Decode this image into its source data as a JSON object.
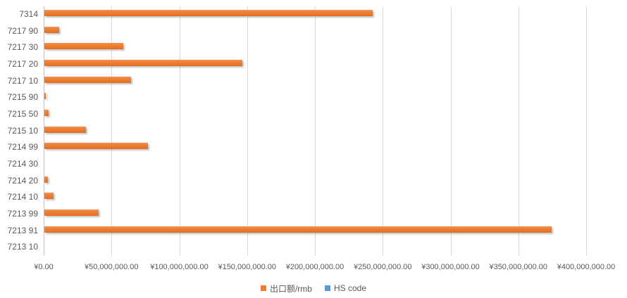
{
  "chart_data": {
    "type": "bar",
    "orientation": "horizontal",
    "title": "",
    "xlabel": "",
    "ylabel": "",
    "categories": [
      "7314",
      "7217 90",
      "7217 30",
      "7217 20",
      "7217 10",
      "7215 90",
      "7215 50",
      "7215 10",
      "7214 99",
      "7214 30",
      "7214 20",
      "7214 10",
      "7213 99",
      "7213 91",
      "7213 10"
    ],
    "series": [
      {
        "name": "出口额/rmb",
        "color": "#ED7D31",
        "values": [
          242000000,
          11000000,
          58000000,
          146000000,
          64000000,
          1200000,
          3000000,
          30500000,
          76500000,
          0,
          2800000,
          6500000,
          40000000,
          374000000,
          0
        ]
      },
      {
        "name": "HS code",
        "color": "#5B9BD5",
        "values": [
          0,
          0,
          0,
          0,
          0,
          0,
          0,
          0,
          0,
          0,
          0,
          0,
          0,
          0,
          0
        ],
        "note": "legend entry present; bars not visible at this axis scale"
      }
    ],
    "xlim": [
      0,
      400000000
    ],
    "x_tick_interval": 50000000,
    "x_ticks": [
      "¥0.00",
      "¥50,000,000.00",
      "¥100,000,000.00",
      "¥150,000,000.00",
      "¥200,000,000.00",
      "¥250,000,000.00",
      "¥300,000,000.00",
      "¥350,000,000.00",
      "¥400,000,000.00"
    ],
    "grid": true,
    "legend_position": "bottom",
    "legend": [
      "出口额/rmb",
      "HS code"
    ]
  },
  "colors": {
    "bar_orange": "#ED7D31",
    "bar_blue": "#5B9BD5",
    "gridline": "#D9D9D9",
    "axis_line": "#BFBFBF",
    "text": "#595959",
    "background": "#FFFFFF"
  }
}
